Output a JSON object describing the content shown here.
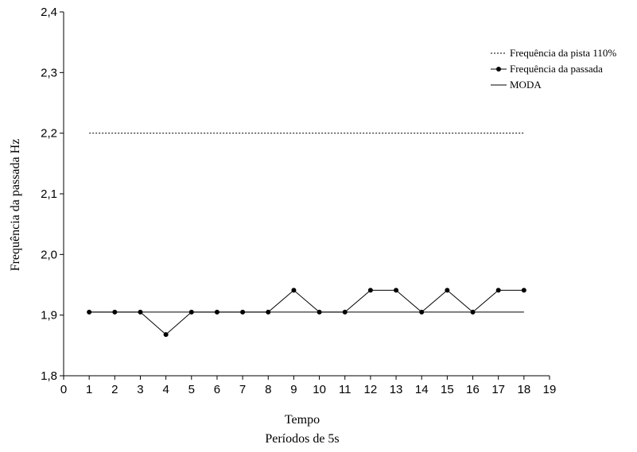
{
  "chart_data": {
    "type": "line",
    "xlabel_lines": [
      "Tempo",
      "Períodos de 5s"
    ],
    "ylabel": "Frequência da passada Hz",
    "xlim": [
      0,
      19
    ],
    "ylim": [
      1.8,
      2.4
    ],
    "x_ticks": [
      "0",
      "1",
      "2",
      "3",
      "4",
      "5",
      "6",
      "7",
      "8",
      "9",
      "10",
      "11",
      "12",
      "13",
      "14",
      "15",
      "16",
      "17",
      "18",
      "19"
    ],
    "y_ticks": [
      "1,8",
      "1,9",
      "2,0",
      "2,1",
      "2,2",
      "2,3",
      "2,4"
    ],
    "series": [
      {
        "name": "Frequência da pista 110%",
        "style": "dotted",
        "x": [
          1,
          18
        ],
        "y": [
          2.2,
          2.2
        ]
      },
      {
        "name": "Frequência da passada",
        "style": "line-markers",
        "x": [
          1,
          2,
          3,
          4,
          5,
          6,
          7,
          8,
          9,
          10,
          11,
          12,
          13,
          14,
          15,
          16,
          17,
          18
        ],
        "y": [
          1.905,
          1.905,
          1.905,
          1.868,
          1.905,
          1.905,
          1.905,
          1.905,
          1.941,
          1.905,
          1.905,
          1.941,
          1.941,
          1.905,
          1.941,
          1.905,
          1.941,
          1.941
        ]
      },
      {
        "name": "MODA",
        "style": "solid",
        "x": [
          1,
          18
        ],
        "y": [
          1.905,
          1.905
        ]
      }
    ],
    "legend_position": "top-right",
    "grid": false
  }
}
